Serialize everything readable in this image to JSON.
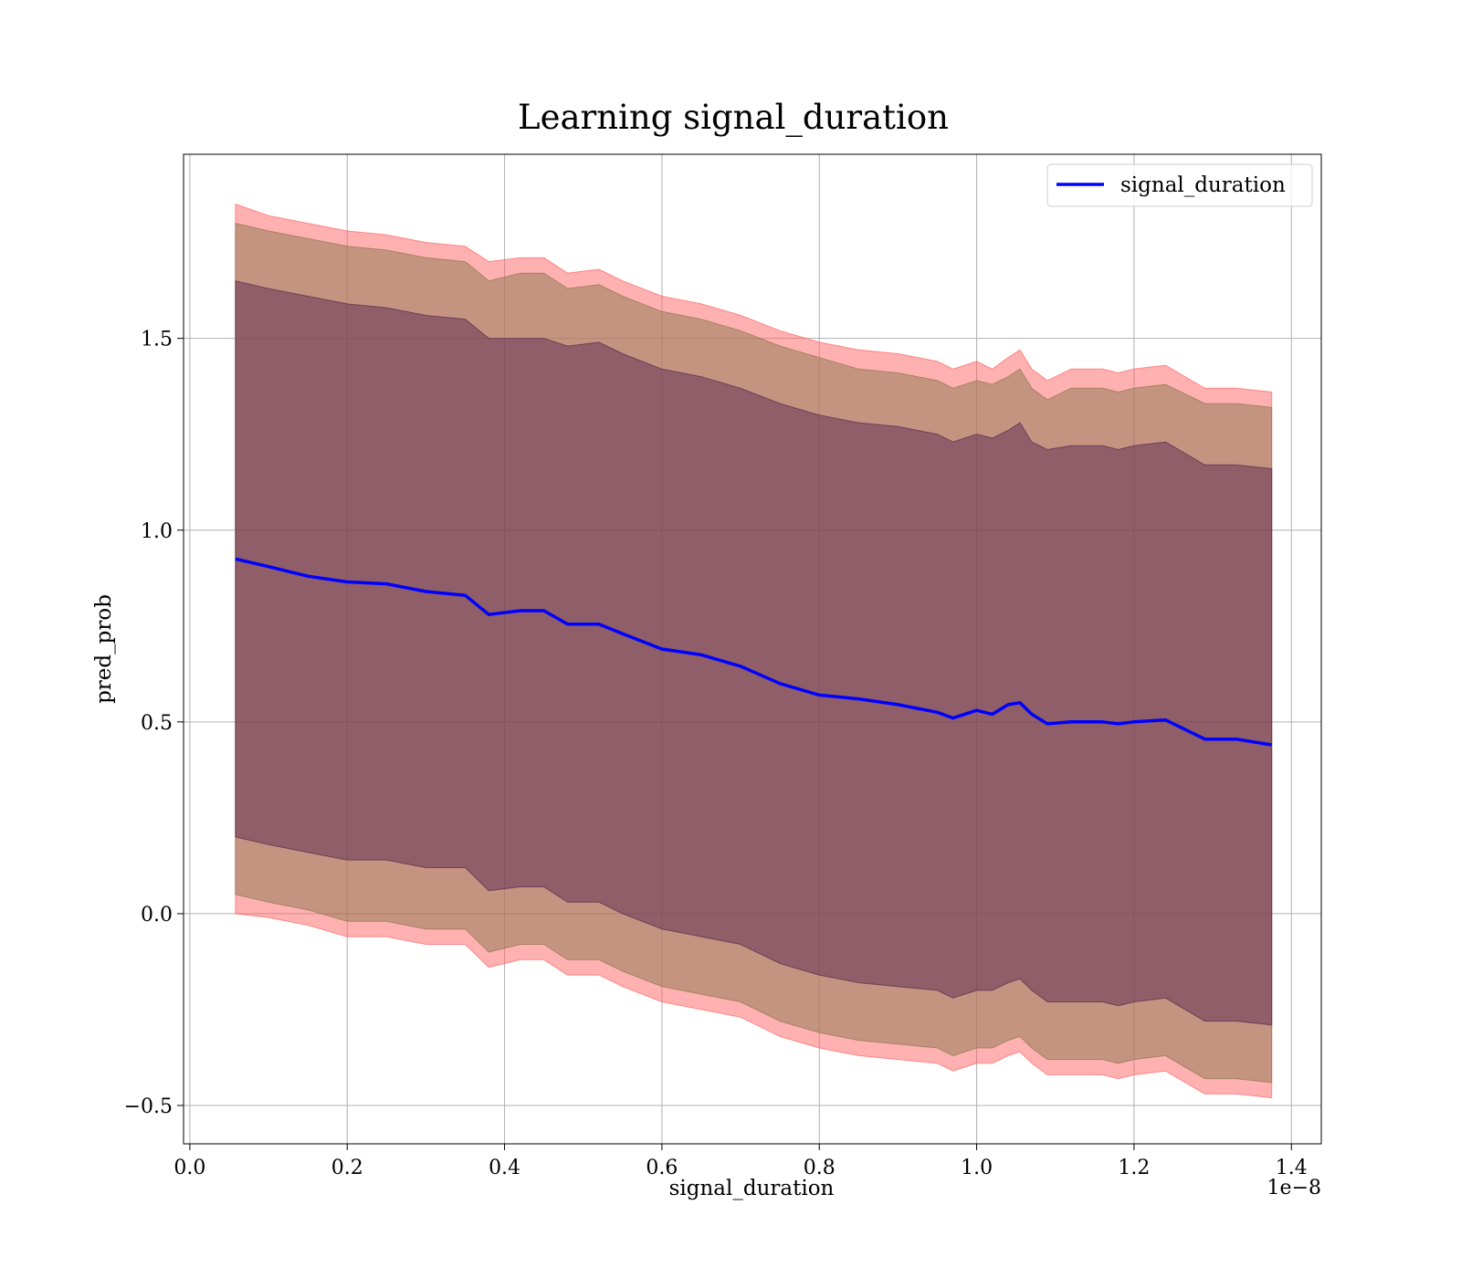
{
  "chart_data": {
    "type": "area",
    "title": "Learning signal_duration",
    "xlabel": "signal_duration",
    "ylabel": "pred_prob",
    "x_offset_label": "1e−8",
    "xlim": [
      -0.008,
      1.438
    ],
    "ylim": [
      -0.6,
      1.98
    ],
    "x_ticks": [
      0.0,
      0.2,
      0.4,
      0.6,
      0.8,
      1.0,
      1.2,
      1.4
    ],
    "x_tick_labels": [
      "0.0",
      "0.2",
      "0.4",
      "0.6",
      "0.8",
      "1.0",
      "1.2",
      "1.4"
    ],
    "y_ticks": [
      -0.5,
      0.0,
      0.5,
      1.0,
      1.5
    ],
    "y_tick_labels": [
      "−0.5",
      "0.0",
      "0.5",
      "1.0",
      "1.5"
    ],
    "grid": true,
    "legend_position": "top-right",
    "x": [
      0.058,
      0.1,
      0.15,
      0.2,
      0.25,
      0.3,
      0.35,
      0.38,
      0.42,
      0.45,
      0.48,
      0.52,
      0.55,
      0.6,
      0.65,
      0.7,
      0.75,
      0.8,
      0.85,
      0.9,
      0.95,
      0.97,
      1.0,
      1.02,
      1.04,
      1.055,
      1.07,
      1.09,
      1.12,
      1.16,
      1.18,
      1.2,
      1.24,
      1.29,
      1.33,
      1.375
    ],
    "series": [
      {
        "name": "signal_duration",
        "color": "#0000ff",
        "values": [
          0.925,
          0.905,
          0.88,
          0.865,
          0.86,
          0.84,
          0.83,
          0.78,
          0.79,
          0.79,
          0.755,
          0.755,
          0.73,
          0.69,
          0.675,
          0.645,
          0.6,
          0.57,
          0.56,
          0.545,
          0.525,
          0.51,
          0.53,
          0.52,
          0.545,
          0.55,
          0.52,
          0.495,
          0.5,
          0.5,
          0.495,
          0.5,
          0.505,
          0.455,
          0.455,
          0.44
        ]
      }
    ],
    "bands": [
      {
        "color": "#ff6464",
        "opacity": 0.5,
        "upper": [
          1.85,
          1.82,
          1.8,
          1.78,
          1.77,
          1.75,
          1.74,
          1.7,
          1.71,
          1.71,
          1.67,
          1.68,
          1.65,
          1.61,
          1.59,
          1.56,
          1.52,
          1.49,
          1.47,
          1.46,
          1.44,
          1.42,
          1.44,
          1.42,
          1.45,
          1.47,
          1.42,
          1.39,
          1.42,
          1.42,
          1.41,
          1.42,
          1.43,
          1.37,
          1.37,
          1.36
        ],
        "lower": [
          0.0,
          -0.01,
          -0.03,
          -0.06,
          -0.06,
          -0.08,
          -0.08,
          -0.14,
          -0.12,
          -0.12,
          -0.16,
          -0.16,
          -0.19,
          -0.23,
          -0.25,
          -0.27,
          -0.32,
          -0.35,
          -0.37,
          -0.38,
          -0.39,
          -0.41,
          -0.39,
          -0.39,
          -0.37,
          -0.36,
          -0.39,
          -0.42,
          -0.42,
          -0.42,
          -0.43,
          -0.42,
          -0.41,
          -0.47,
          -0.47,
          -0.48
        ]
      },
      {
        "color": "#8c7850",
        "opacity": 0.5,
        "upper": [
          1.8,
          1.78,
          1.76,
          1.74,
          1.73,
          1.71,
          1.7,
          1.65,
          1.67,
          1.67,
          1.63,
          1.64,
          1.61,
          1.57,
          1.55,
          1.52,
          1.48,
          1.45,
          1.42,
          1.41,
          1.39,
          1.37,
          1.39,
          1.38,
          1.4,
          1.42,
          1.37,
          1.34,
          1.37,
          1.37,
          1.36,
          1.37,
          1.38,
          1.33,
          1.33,
          1.32
        ],
        "lower": [
          0.05,
          0.03,
          0.01,
          -0.02,
          -0.02,
          -0.04,
          -0.04,
          -0.1,
          -0.08,
          -0.08,
          -0.12,
          -0.12,
          -0.15,
          -0.19,
          -0.21,
          -0.23,
          -0.28,
          -0.31,
          -0.33,
          -0.34,
          -0.35,
          -0.37,
          -0.35,
          -0.35,
          -0.33,
          -0.32,
          -0.35,
          -0.38,
          -0.38,
          -0.38,
          -0.39,
          -0.38,
          -0.37,
          -0.43,
          -0.43,
          -0.44
        ]
      },
      {
        "color": "#5a2850",
        "opacity": 0.5,
        "upper": [
          1.65,
          1.63,
          1.61,
          1.59,
          1.58,
          1.56,
          1.55,
          1.5,
          1.5,
          1.5,
          1.48,
          1.49,
          1.46,
          1.42,
          1.4,
          1.37,
          1.33,
          1.3,
          1.28,
          1.27,
          1.25,
          1.23,
          1.25,
          1.24,
          1.26,
          1.28,
          1.23,
          1.21,
          1.22,
          1.22,
          1.21,
          1.22,
          1.23,
          1.17,
          1.17,
          1.16
        ],
        "lower": [
          0.2,
          0.18,
          0.16,
          0.14,
          0.14,
          0.12,
          0.12,
          0.06,
          0.07,
          0.07,
          0.03,
          0.03,
          0.0,
          -0.04,
          -0.06,
          -0.08,
          -0.13,
          -0.16,
          -0.18,
          -0.19,
          -0.2,
          -0.22,
          -0.2,
          -0.2,
          -0.18,
          -0.17,
          -0.2,
          -0.23,
          -0.23,
          -0.23,
          -0.24,
          -0.23,
          -0.22,
          -0.28,
          -0.28,
          -0.29
        ]
      }
    ]
  }
}
